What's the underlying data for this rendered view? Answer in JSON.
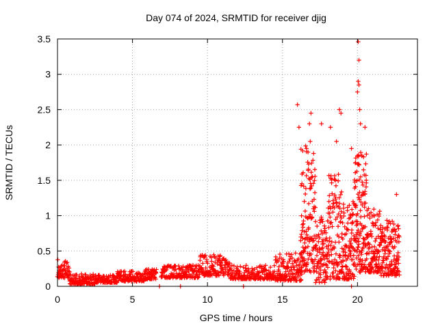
{
  "chart_data": {
    "type": "scatter",
    "title": "Day 074 of 2024, SRMTID for receiver djig",
    "xlabel": "GPS time / hours",
    "ylabel": "SRMTID / TECUs",
    "xlim": [
      0,
      24
    ],
    "ylim": [
      0,
      3.5
    ],
    "x_ticks": [
      0,
      5,
      10,
      15,
      20
    ],
    "x_tick_labels": [
      "0",
      "5",
      "10",
      "15",
      "20"
    ],
    "y_ticks": [
      0,
      0.5,
      1,
      1.5,
      2,
      2.5,
      3,
      3.5
    ],
    "y_tick_labels": [
      "0",
      "0.5",
      "1",
      "1.5",
      "2",
      "2.5",
      "3",
      "3.5"
    ],
    "grid": true,
    "marker": "+",
    "color": "#ff0000",
    "series": [
      {
        "name": "SRMTID",
        "segments": [
          {
            "x_start": 0.0,
            "x_end": 0.8,
            "y_min": 0.12,
            "y_max": 0.38,
            "n": 55
          },
          {
            "x_start": 0.8,
            "x_end": 2.5,
            "y_min": 0.03,
            "y_max": 0.18,
            "n": 110
          },
          {
            "x_start": 2.5,
            "x_end": 4.0,
            "y_min": 0.05,
            "y_max": 0.16,
            "n": 90
          },
          {
            "x_start": 4.0,
            "x_end": 5.8,
            "y_min": 0.07,
            "y_max": 0.22,
            "n": 110
          },
          {
            "x_start": 5.8,
            "x_end": 6.6,
            "y_min": 0.1,
            "y_max": 0.25,
            "n": 55
          },
          {
            "x_start": 6.9,
            "x_end": 9.5,
            "y_min": 0.12,
            "y_max": 0.3,
            "n": 150
          },
          {
            "x_start": 9.5,
            "x_end": 11.5,
            "y_min": 0.15,
            "y_max": 0.45,
            "n": 130
          },
          {
            "x_start": 11.5,
            "x_end": 14.5,
            "y_min": 0.1,
            "y_max": 0.3,
            "n": 170
          },
          {
            "x_start": 14.5,
            "x_end": 16.3,
            "y_min": 0.08,
            "y_max": 0.48,
            "n": 130
          },
          {
            "x_start": 16.2,
            "x_end": 17.2,
            "y_min": 0.2,
            "y_max": 2.05,
            "n": 140
          },
          {
            "x_start": 17.2,
            "x_end": 18.0,
            "y_min": 0.05,
            "y_max": 1.0,
            "n": 90
          },
          {
            "x_start": 18.0,
            "x_end": 19.0,
            "y_min": 0.1,
            "y_max": 1.6,
            "n": 120
          },
          {
            "x_start": 19.0,
            "x_end": 19.8,
            "y_min": 0.1,
            "y_max": 1.2,
            "n": 100
          },
          {
            "x_start": 19.8,
            "x_end": 20.6,
            "y_min": 0.2,
            "y_max": 1.9,
            "n": 130
          },
          {
            "x_start": 20.6,
            "x_end": 21.5,
            "y_min": 0.2,
            "y_max": 1.1,
            "n": 110
          },
          {
            "x_start": 21.5,
            "x_end": 22.8,
            "y_min": 0.15,
            "y_max": 0.95,
            "n": 150
          }
        ],
        "highlights": [
          [
            16.0,
            2.57
          ],
          [
            16.1,
            2.25
          ],
          [
            16.6,
            1.95
          ],
          [
            16.9,
            2.45
          ],
          [
            16.8,
            2.3
          ],
          [
            17.6,
            2.3
          ],
          [
            18.2,
            2.25
          ],
          [
            18.6,
            2.05
          ],
          [
            18.8,
            2.5
          ],
          [
            18.9,
            2.45
          ],
          [
            19.6,
            1.95
          ],
          [
            20.05,
            3.46
          ],
          [
            20.1,
            3.2
          ],
          [
            20.05,
            2.9
          ],
          [
            20.1,
            2.85
          ],
          [
            20.0,
            2.75
          ],
          [
            20.15,
            2.5
          ],
          [
            20.2,
            2.3
          ],
          [
            20.5,
            2.25
          ],
          [
            22.6,
            1.3
          ]
        ],
        "zero_points": [
          6.8,
          8.2,
          12.4,
          19.6
        ]
      }
    ]
  }
}
